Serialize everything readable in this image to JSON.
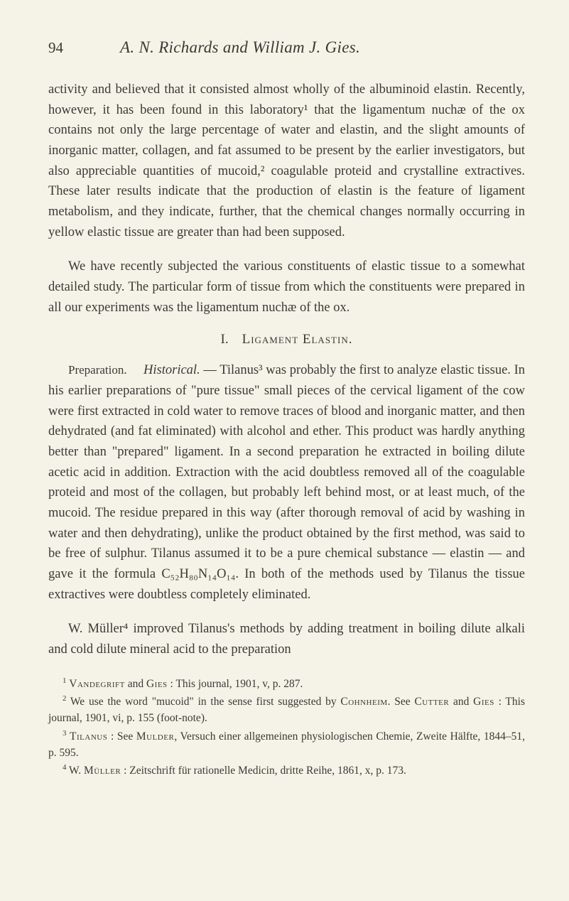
{
  "page_number": "94",
  "running_header": "A. N. Richards and William J. Gies.",
  "paragraphs": {
    "p1": "activity and believed that it consisted almost wholly of the albuminoid elastin. Recently, however, it has been found in this laboratory¹ that the ligamentum nuchæ of the ox contains not only the large percentage of water and elastin, and the slight amounts of inorganic matter, collagen, and fat assumed to be present by the earlier investigators, but also appreciable quantities of mucoid,² coagulable proteid and crystalline extractives. These later results indicate that the production of elastin is the feature of ligament metabolism, and they indicate, further, that the chemical changes normally occurring in yellow elastic tissue are greater than had been supposed.",
    "p2": "We have recently subjected the various constituents of elastic tissue to a somewhat detailed study. The particular form of tissue from which the constituents were prepared in all our experiments was the ligamentum nuchæ of the ox.",
    "section_num": "I.",
    "section_title": "Ligament Elastin.",
    "p3_runin": "Preparation.",
    "p3_italic": "Historical.",
    "p3_rest": " — Tilanus³ was probably the first to analyze elastic tissue. In his earlier preparations of \"pure tissue\" small pieces of the cervical ligament of the cow were first extracted in cold water to remove traces of blood and inorganic matter, and then dehydrated (and fat eliminated) with alcohol and ether. This product was hardly anything better than \"prepared\" ligament. In a second preparation he extracted in boiling dilute acetic acid in addition. Extraction with the acid doubtless removed all of the coagulable proteid and most of the collagen, but probably left behind most, or at least much, of the mucoid. The residue prepared in this way (after thorough removal of acid by washing in water and then dehydrating), unlike the product obtained by the first method, was said to be free of sulphur. Tilanus assumed it to be a pure chemical substance — elastin — and gave it the formula C₅₂H₈₀N₁₄O₁₄. In both of the methods used by Tilanus the tissue extractives were doubtless completely eliminated.",
    "p4": "W. Müller⁴ improved Tilanus's methods by adding treatment in boiling dilute alkali and cold dilute mineral acid to the preparation"
  },
  "footnotes": {
    "f1_num": "1",
    "f1_name": "Vandegrift",
    "f1_and": " and ",
    "f1_name2": "Gies",
    "f1_rest": " : This journal, 1901, v, p. 287.",
    "f2_num": "2",
    "f2_text_a": " We use the word \"mucoid\" in the sense first suggested by ",
    "f2_name": "Cohnheim",
    "f2_text_b": ". See ",
    "f2_name2": "Cutter",
    "f2_and": " and ",
    "f2_name3": "Gies",
    "f2_rest": " : This journal, 1901, vi, p. 155 (foot-note).",
    "f3_num": "3",
    "f3_name": "Tilanus",
    "f3_text_a": " : See ",
    "f3_name2": "Mulder",
    "f3_rest": ", Versuch einer allgemeinen physiologischen Chemie, Zweite Hälfte, 1844–51, p. 595.",
    "f4_num": "4",
    "f4_text_a": " W. ",
    "f4_name": "Müller",
    "f4_rest": " : Zeitschrift für rationelle Medicin, dritte Reihe, 1861, x, p. 173."
  }
}
